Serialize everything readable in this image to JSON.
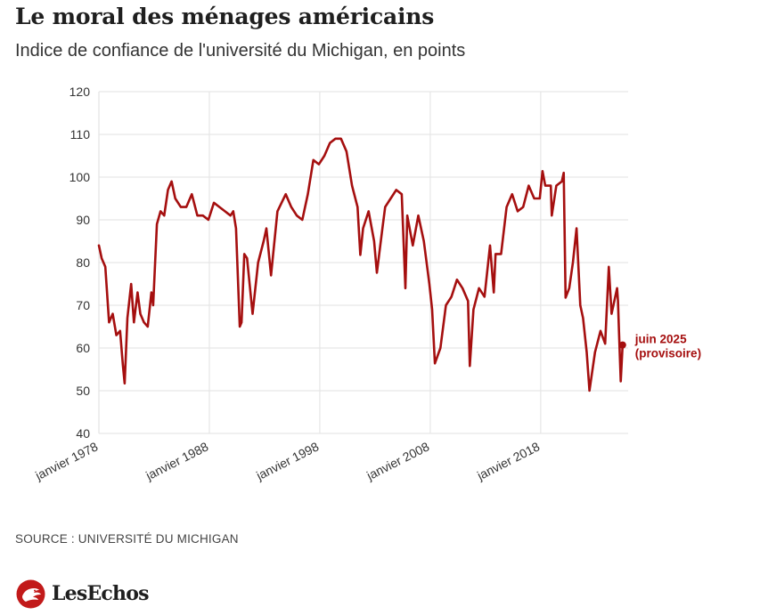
{
  "header": {
    "title": "Le moral des ménages américains",
    "subtitle": "Indice de confiance de l'université du Michigan, en points"
  },
  "footer": {
    "source": "SOURCE : UNIVERSITÉ DU MICHIGAN",
    "brand": "LesEchos"
  },
  "colors": {
    "line": "#a50f0f",
    "grid": "#e6e6e6",
    "text": "#333333"
  },
  "chart_data": {
    "type": "line",
    "title": "Le moral des ménages américains",
    "subtitle": "Indice de confiance de l'université du Michigan, en points",
    "xlabel": "",
    "ylabel": "",
    "ylim": [
      40,
      120
    ],
    "yticks": [
      40,
      50,
      60,
      70,
      80,
      90,
      100,
      110,
      120
    ],
    "xticks": [
      {
        "date": "1978-01",
        "label": "janvier 1978"
      },
      {
        "date": "1988-01",
        "label": "janvier 1988"
      },
      {
        "date": "1998-01",
        "label": "janvier 1998"
      },
      {
        "date": "2008-01",
        "label": "janvier 2008"
      },
      {
        "date": "2018-01",
        "label": "janvier 2018"
      }
    ],
    "xlim": [
      "1978-01",
      "2025-12"
    ],
    "grid": true,
    "annotation": {
      "date": "2025-06",
      "value": 60.7,
      "label_line1": "juin 2025",
      "label_line2": "(provisoire)"
    },
    "series": [
      {
        "points": [
          [
            "1978-01",
            84
          ],
          [
            "1978-04",
            81
          ],
          [
            "1978-08",
            79
          ],
          [
            "1978-12",
            66
          ],
          [
            "1979-04",
            68
          ],
          [
            "1979-08",
            63
          ],
          [
            "1979-12",
            64
          ],
          [
            "1980-03",
            56
          ],
          [
            "1980-05",
            51.7
          ],
          [
            "1980-08",
            67
          ],
          [
            "1980-12",
            75
          ],
          [
            "1981-03",
            66
          ],
          [
            "1981-07",
            73
          ],
          [
            "1981-10",
            68
          ],
          [
            "1982-02",
            66
          ],
          [
            "1982-06",
            65
          ],
          [
            "1982-10",
            73
          ],
          [
            "1982-12",
            70
          ],
          [
            "1983-04",
            89
          ],
          [
            "1983-08",
            92
          ],
          [
            "1983-12",
            91
          ],
          [
            "1984-04",
            97
          ],
          [
            "1984-08",
            99
          ],
          [
            "1984-12",
            95
          ],
          [
            "1985-06",
            93
          ],
          [
            "1985-12",
            93
          ],
          [
            "1986-06",
            96
          ],
          [
            "1986-12",
            91
          ],
          [
            "1987-06",
            91
          ],
          [
            "1987-12",
            90
          ],
          [
            "1988-06",
            94
          ],
          [
            "1988-12",
            93
          ],
          [
            "1989-06",
            92
          ],
          [
            "1989-12",
            91
          ],
          [
            "1990-03",
            92
          ],
          [
            "1990-06",
            88
          ],
          [
            "1990-10",
            65
          ],
          [
            "1990-12",
            66
          ],
          [
            "1991-03",
            82
          ],
          [
            "1991-06",
            81
          ],
          [
            "1991-12",
            68
          ],
          [
            "1992-06",
            80
          ],
          [
            "1992-12",
            85
          ],
          [
            "1993-03",
            88
          ],
          [
            "1993-08",
            77
          ],
          [
            "1994-03",
            92
          ],
          [
            "1994-12",
            96
          ],
          [
            "1995-06",
            93
          ],
          [
            "1995-12",
            91
          ],
          [
            "1996-06",
            90
          ],
          [
            "1996-12",
            96
          ],
          [
            "1997-06",
            104
          ],
          [
            "1997-12",
            103
          ],
          [
            "1998-06",
            105
          ],
          [
            "1998-12",
            108
          ],
          [
            "1999-06",
            109
          ],
          [
            "1999-12",
            109
          ],
          [
            "2000-06",
            106
          ],
          [
            "2000-12",
            98
          ],
          [
            "2001-06",
            93
          ],
          [
            "2001-09",
            81.8
          ],
          [
            "2001-12",
            88
          ],
          [
            "2002-06",
            92
          ],
          [
            "2002-12",
            85
          ],
          [
            "2003-03",
            77.6
          ],
          [
            "2003-09",
            88
          ],
          [
            "2003-12",
            93
          ],
          [
            "2004-06",
            95
          ],
          [
            "2004-12",
            97
          ],
          [
            "2005-06",
            96
          ],
          [
            "2005-10",
            74
          ],
          [
            "2005-12",
            91
          ],
          [
            "2006-06",
            84
          ],
          [
            "2006-12",
            91
          ],
          [
            "2007-06",
            85
          ],
          [
            "2007-12",
            75
          ],
          [
            "2008-03",
            69
          ],
          [
            "2008-06",
            56.4
          ],
          [
            "2008-12",
            60
          ],
          [
            "2009-06",
            70
          ],
          [
            "2009-12",
            72
          ],
          [
            "2010-06",
            76
          ],
          [
            "2010-12",
            74
          ],
          [
            "2011-06",
            71
          ],
          [
            "2011-08",
            55.8
          ],
          [
            "2011-12",
            69
          ],
          [
            "2012-06",
            74
          ],
          [
            "2012-12",
            72
          ],
          [
            "2013-06",
            84
          ],
          [
            "2013-10",
            73
          ],
          [
            "2013-12",
            82
          ],
          [
            "2014-06",
            82
          ],
          [
            "2014-12",
            93
          ],
          [
            "2015-06",
            96
          ],
          [
            "2015-12",
            92
          ],
          [
            "2016-06",
            93
          ],
          [
            "2016-12",
            98
          ],
          [
            "2017-06",
            95
          ],
          [
            "2017-12",
            95
          ],
          [
            "2018-03",
            101.4
          ],
          [
            "2018-06",
            98
          ],
          [
            "2018-12",
            98
          ],
          [
            "2019-01",
            91
          ],
          [
            "2019-06",
            98
          ],
          [
            "2019-12",
            99
          ],
          [
            "2020-02",
            101
          ],
          [
            "2020-04",
            71.8
          ],
          [
            "2020-08",
            74
          ],
          [
            "2020-12",
            80
          ],
          [
            "2021-04",
            88
          ],
          [
            "2021-08",
            70
          ],
          [
            "2021-11",
            67
          ],
          [
            "2022-03",
            59
          ],
          [
            "2022-06",
            50
          ],
          [
            "2022-12",
            59
          ],
          [
            "2023-06",
            64
          ],
          [
            "2023-11",
            61
          ],
          [
            "2024-03",
            79
          ],
          [
            "2024-06",
            68
          ],
          [
            "2024-12",
            74
          ],
          [
            "2025-01",
            71
          ],
          [
            "2025-02",
            64
          ],
          [
            "2025-04",
            52.2
          ],
          [
            "2025-06",
            60.7
          ]
        ]
      }
    ]
  }
}
